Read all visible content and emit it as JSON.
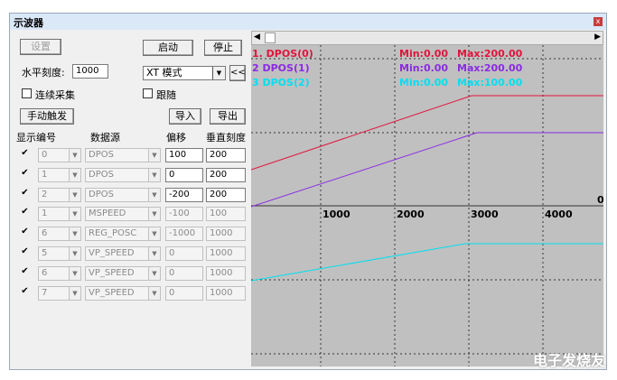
{
  "window": {
    "title": "示波器"
  },
  "controls": {
    "settings": "设置",
    "start": "启动",
    "stop": "停止",
    "h_scale_label": "水平刻度:",
    "h_scale_value": "1000",
    "mode": "XT 模式",
    "collapse": "<<",
    "continuous": "连续采集",
    "follow": "跟随",
    "manual_trigger": "手动触发",
    "import": "导入",
    "export": "导出"
  },
  "table": {
    "headers": [
      "显示",
      "编号",
      "数据源",
      "偏移",
      "垂直刻度"
    ],
    "rows": [
      [
        "0",
        "DPOS",
        "100",
        "200"
      ],
      [
        "1",
        "DPOS",
        "0",
        "200"
      ],
      [
        "2",
        "DPOS",
        "-200",
        "200"
      ],
      [
        "1",
        "MSPEED",
        "-100",
        "100"
      ],
      [
        "6",
        "REG_POSC",
        "-1000",
        "1000"
      ],
      [
        "5",
        "VP_SPEED",
        "0",
        "1000"
      ],
      [
        "6",
        "VP_SPEED",
        "0",
        "1000"
      ],
      [
        "7",
        "VP_SPEED",
        "0",
        "1000"
      ]
    ]
  },
  "plot": {
    "legend": [
      {
        "name": "1. DPOS(0)",
        "min": "Min:0.00",
        "max": "Max:200.00",
        "color": "#e0143c"
      },
      {
        "name": "2 DPOS(1)",
        "min": "Min:0.00",
        "max": "Max:200.00",
        "color": "#8a2be2"
      },
      {
        "name": "3 DPOS(2)",
        "min": "Min:0.00",
        "max": "Max:100.00",
        "color": "#00e0f0"
      }
    ],
    "x_labels": [
      "1000",
      "2000",
      "3000",
      "4000"
    ],
    "zero_label": "0"
  },
  "watermark": "电子发烧友"
}
